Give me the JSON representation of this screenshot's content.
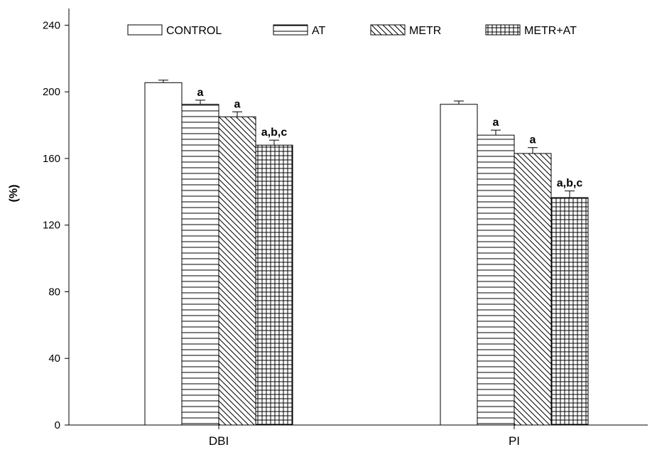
{
  "chart_data": {
    "type": "bar",
    "title": "",
    "xlabel": "",
    "ylabel": "(%)",
    "ylim": [
      0,
      250
    ],
    "yticks": [
      0,
      40,
      80,
      120,
      160,
      200,
      240
    ],
    "categories": [
      "DBI",
      "PI"
    ],
    "series": [
      {
        "name": "CONTROL",
        "pattern": "blank",
        "values": [
          205.5,
          192.5
        ],
        "errors": [
          1.5,
          2.0
        ],
        "annotations": [
          "",
          ""
        ]
      },
      {
        "name": "AT",
        "pattern": "horizontal",
        "values": [
          192.5,
          174.0
        ],
        "errors": [
          2.5,
          3.0
        ],
        "annotations": [
          "a",
          "a"
        ]
      },
      {
        "name": "METR",
        "pattern": "diagonal",
        "values": [
          185.0,
          163.0
        ],
        "errors": [
          3.0,
          3.5
        ],
        "annotations": [
          "a",
          "a"
        ]
      },
      {
        "name": "METR+AT",
        "pattern": "grid",
        "values": [
          168.0,
          136.5
        ],
        "errors": [
          3.0,
          4.0
        ],
        "annotations": [
          "a,b,c",
          "a,b,c"
        ]
      }
    ],
    "legend": "top",
    "grid": false,
    "colors": {
      "axis": "#000000",
      "bar_stroke": "#000000",
      "bar_fill": "#ffffff"
    }
  }
}
